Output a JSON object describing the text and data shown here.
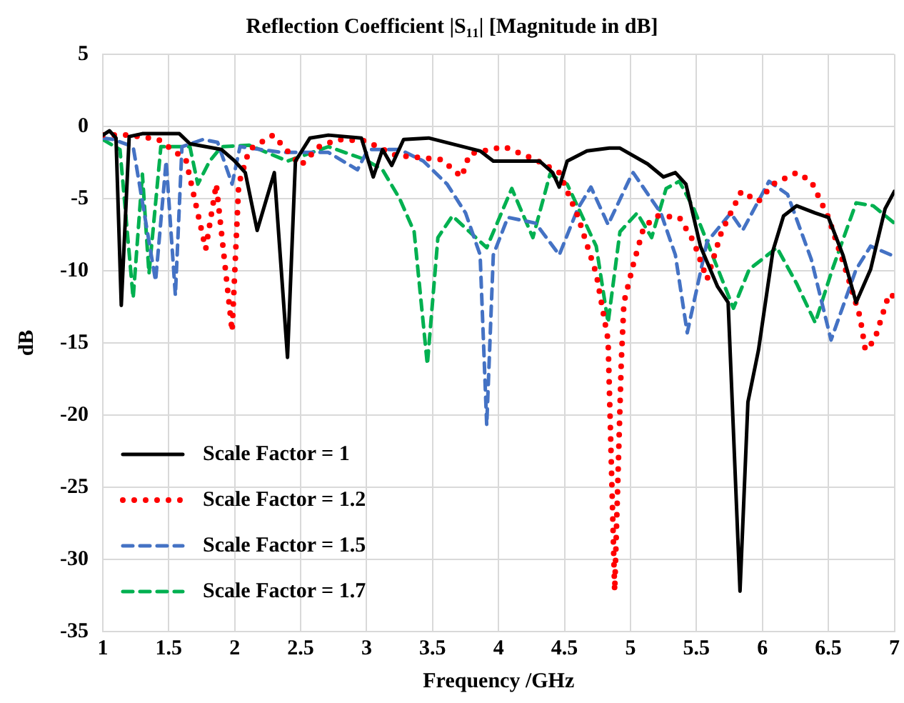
{
  "chart_data": {
    "type": "line",
    "title": "Reflection Coefficient |S₁₁| [Magnitude in dB]",
    "xlabel": "Frequency /GHz",
    "ylabel": "dB",
    "xlim": [
      1,
      7
    ],
    "xticks": [
      1,
      1.5,
      2,
      2.5,
      3,
      3.5,
      4,
      4.5,
      5,
      5.5,
      6,
      6.5,
      7
    ],
    "ylim": [
      -35,
      5
    ],
    "yticks": [
      -35,
      -30,
      -25,
      -20,
      -15,
      -10,
      -5,
      0,
      5
    ],
    "grid": true,
    "legend": "bottom left",
    "marker": "none",
    "series": [
      {
        "name": "Scale Factor = 1",
        "color": "#000000",
        "line_style": "solid",
        "x": [
          1.0,
          1.05,
          1.1,
          1.14,
          1.2,
          1.3,
          1.58,
          1.66,
          1.9,
          2.0,
          2.08,
          2.17,
          2.3,
          2.4,
          2.46,
          2.57,
          2.71,
          2.96,
          3.05,
          3.12,
          3.19,
          3.28,
          3.47,
          3.86,
          3.96,
          4.31,
          4.41,
          4.46,
          4.52,
          4.67,
          4.84,
          4.92,
          5.13,
          5.25,
          5.34,
          5.42,
          5.53,
          5.66,
          5.74,
          5.83,
          5.89,
          5.97,
          6.08,
          6.16,
          6.26,
          6.4,
          6.5,
          6.61,
          6.71,
          6.82,
          6.93,
          7.0
        ],
        "values": [
          -0.6,
          -0.3,
          -0.8,
          -12.4,
          -0.7,
          -0.5,
          -0.5,
          -1.2,
          -1.6,
          -2.4,
          -3.2,
          -7.2,
          -3.2,
          -16,
          -2.4,
          -0.8,
          -0.6,
          -0.8,
          -3.5,
          -1.6,
          -2.7,
          -0.9,
          -0.8,
          -1.7,
          -2.4,
          -2.4,
          -3.2,
          -4.2,
          -2.4,
          -1.7,
          -1.5,
          -1.5,
          -2.6,
          -3.5,
          -3.2,
          -4.0,
          -8.3,
          -11.1,
          -12.2,
          -32.2,
          -19.1,
          -15.5,
          -8.6,
          -6.2,
          -5.5,
          -6.0,
          -6.3,
          -8.9,
          -12.2,
          -9.9,
          -5.7,
          -4.5
        ]
      },
      {
        "name": "Scale Factor = 1.2",
        "color": "#ff0000",
        "line_style": "dotted",
        "x": [
          1.0,
          1.2,
          1.42,
          1.63,
          1.78,
          1.86,
          1.98,
          2.03,
          2.11,
          2.29,
          2.5,
          2.64,
          2.78,
          2.99,
          3.22,
          3.57,
          3.72,
          3.78,
          4.04,
          4.28,
          4.46,
          4.6,
          4.74,
          4.83,
          4.88,
          4.93,
          4.95,
          5.02,
          5.1,
          5.2,
          5.37,
          5.48,
          5.58,
          5.69,
          5.84,
          5.97,
          6.08,
          6.26,
          6.37,
          6.5,
          6.64,
          6.74,
          6.78,
          6.85,
          6.96,
          7.0
        ],
        "values": [
          -0.6,
          -0.6,
          -0.9,
          -2.3,
          -8.5,
          -4.0,
          -14.2,
          -4.0,
          -1.6,
          -0.6,
          -2.7,
          -1.4,
          -0.9,
          -1.0,
          -2.0,
          -2.3,
          -3.5,
          -1.9,
          -1.4,
          -2.3,
          -3.2,
          -6.2,
          -10.2,
          -14.8,
          -32.2,
          -16.3,
          -12.2,
          -9.6,
          -7.0,
          -6.2,
          -6.3,
          -8.0,
          -10.6,
          -7.3,
          -4.5,
          -5.2,
          -4.0,
          -3.2,
          -3.8,
          -6.3,
          -10.2,
          -13.2,
          -15.5,
          -14.8,
          -11.6,
          -11.8
        ]
      },
      {
        "name": "Scale Factor = 1.5",
        "color": "#4472c4",
        "line_style": "dashed",
        "x": [
          1.0,
          1.08,
          1.23,
          1.4,
          1.48,
          1.55,
          1.6,
          1.76,
          1.87,
          1.98,
          2.04,
          2.36,
          2.71,
          2.93,
          3.01,
          3.25,
          3.43,
          3.61,
          3.75,
          3.86,
          3.91,
          3.96,
          4.07,
          4.28,
          4.46,
          4.6,
          4.7,
          4.83,
          4.99,
          5.02,
          5.23,
          5.34,
          5.43,
          5.58,
          5.76,
          5.85,
          6.05,
          6.19,
          6.37,
          6.52,
          6.71,
          6.82,
          7.0
        ],
        "values": [
          -0.8,
          -0.9,
          -1.4,
          -10.7,
          -2.4,
          -11.7,
          -1.4,
          -0.9,
          -1.1,
          -4.0,
          -1.4,
          -1.8,
          -1.8,
          -3.0,
          -1.6,
          -1.6,
          -2.4,
          -4.0,
          -6.0,
          -8.9,
          -20.7,
          -8.9,
          -6.3,
          -6.7,
          -8.9,
          -5.7,
          -4.2,
          -6.8,
          -3.7,
          -3.2,
          -6.0,
          -8.9,
          -14.3,
          -8.0,
          -6.0,
          -7.2,
          -3.8,
          -4.7,
          -9.2,
          -14.8,
          -9.9,
          -8.3,
          -9.0
        ]
      },
      {
        "name": "Scale Factor = 1.7",
        "color": "#00b050",
        "line_style": "dashed",
        "x": [
          1.0,
          1.13,
          1.23,
          1.3,
          1.35,
          1.44,
          1.66,
          1.72,
          1.81,
          1.9,
          2.11,
          2.4,
          2.71,
          2.99,
          3.12,
          3.25,
          3.36,
          3.46,
          3.54,
          3.65,
          3.91,
          4.1,
          4.26,
          4.39,
          4.52,
          4.74,
          4.83,
          4.92,
          5.05,
          5.16,
          5.27,
          5.37,
          5.48,
          5.62,
          5.78,
          5.9,
          6.11,
          6.26,
          6.4,
          6.53,
          6.71,
          6.84,
          7.0
        ],
        "values": [
          -0.9,
          -1.6,
          -11.9,
          -3.3,
          -10.2,
          -1.4,
          -1.4,
          -4.0,
          -2.4,
          -1.4,
          -1.3,
          -2.4,
          -1.4,
          -2.3,
          -3.0,
          -5.0,
          -7.3,
          -16.5,
          -7.7,
          -6.2,
          -8.4,
          -4.3,
          -7.7,
          -3.3,
          -4.0,
          -8.3,
          -13.6,
          -7.3,
          -6.0,
          -7.7,
          -4.3,
          -3.8,
          -5.7,
          -8.9,
          -12.6,
          -9.9,
          -8.4,
          -10.9,
          -13.6,
          -9.9,
          -5.3,
          -5.5,
          -6.7
        ]
      }
    ]
  }
}
